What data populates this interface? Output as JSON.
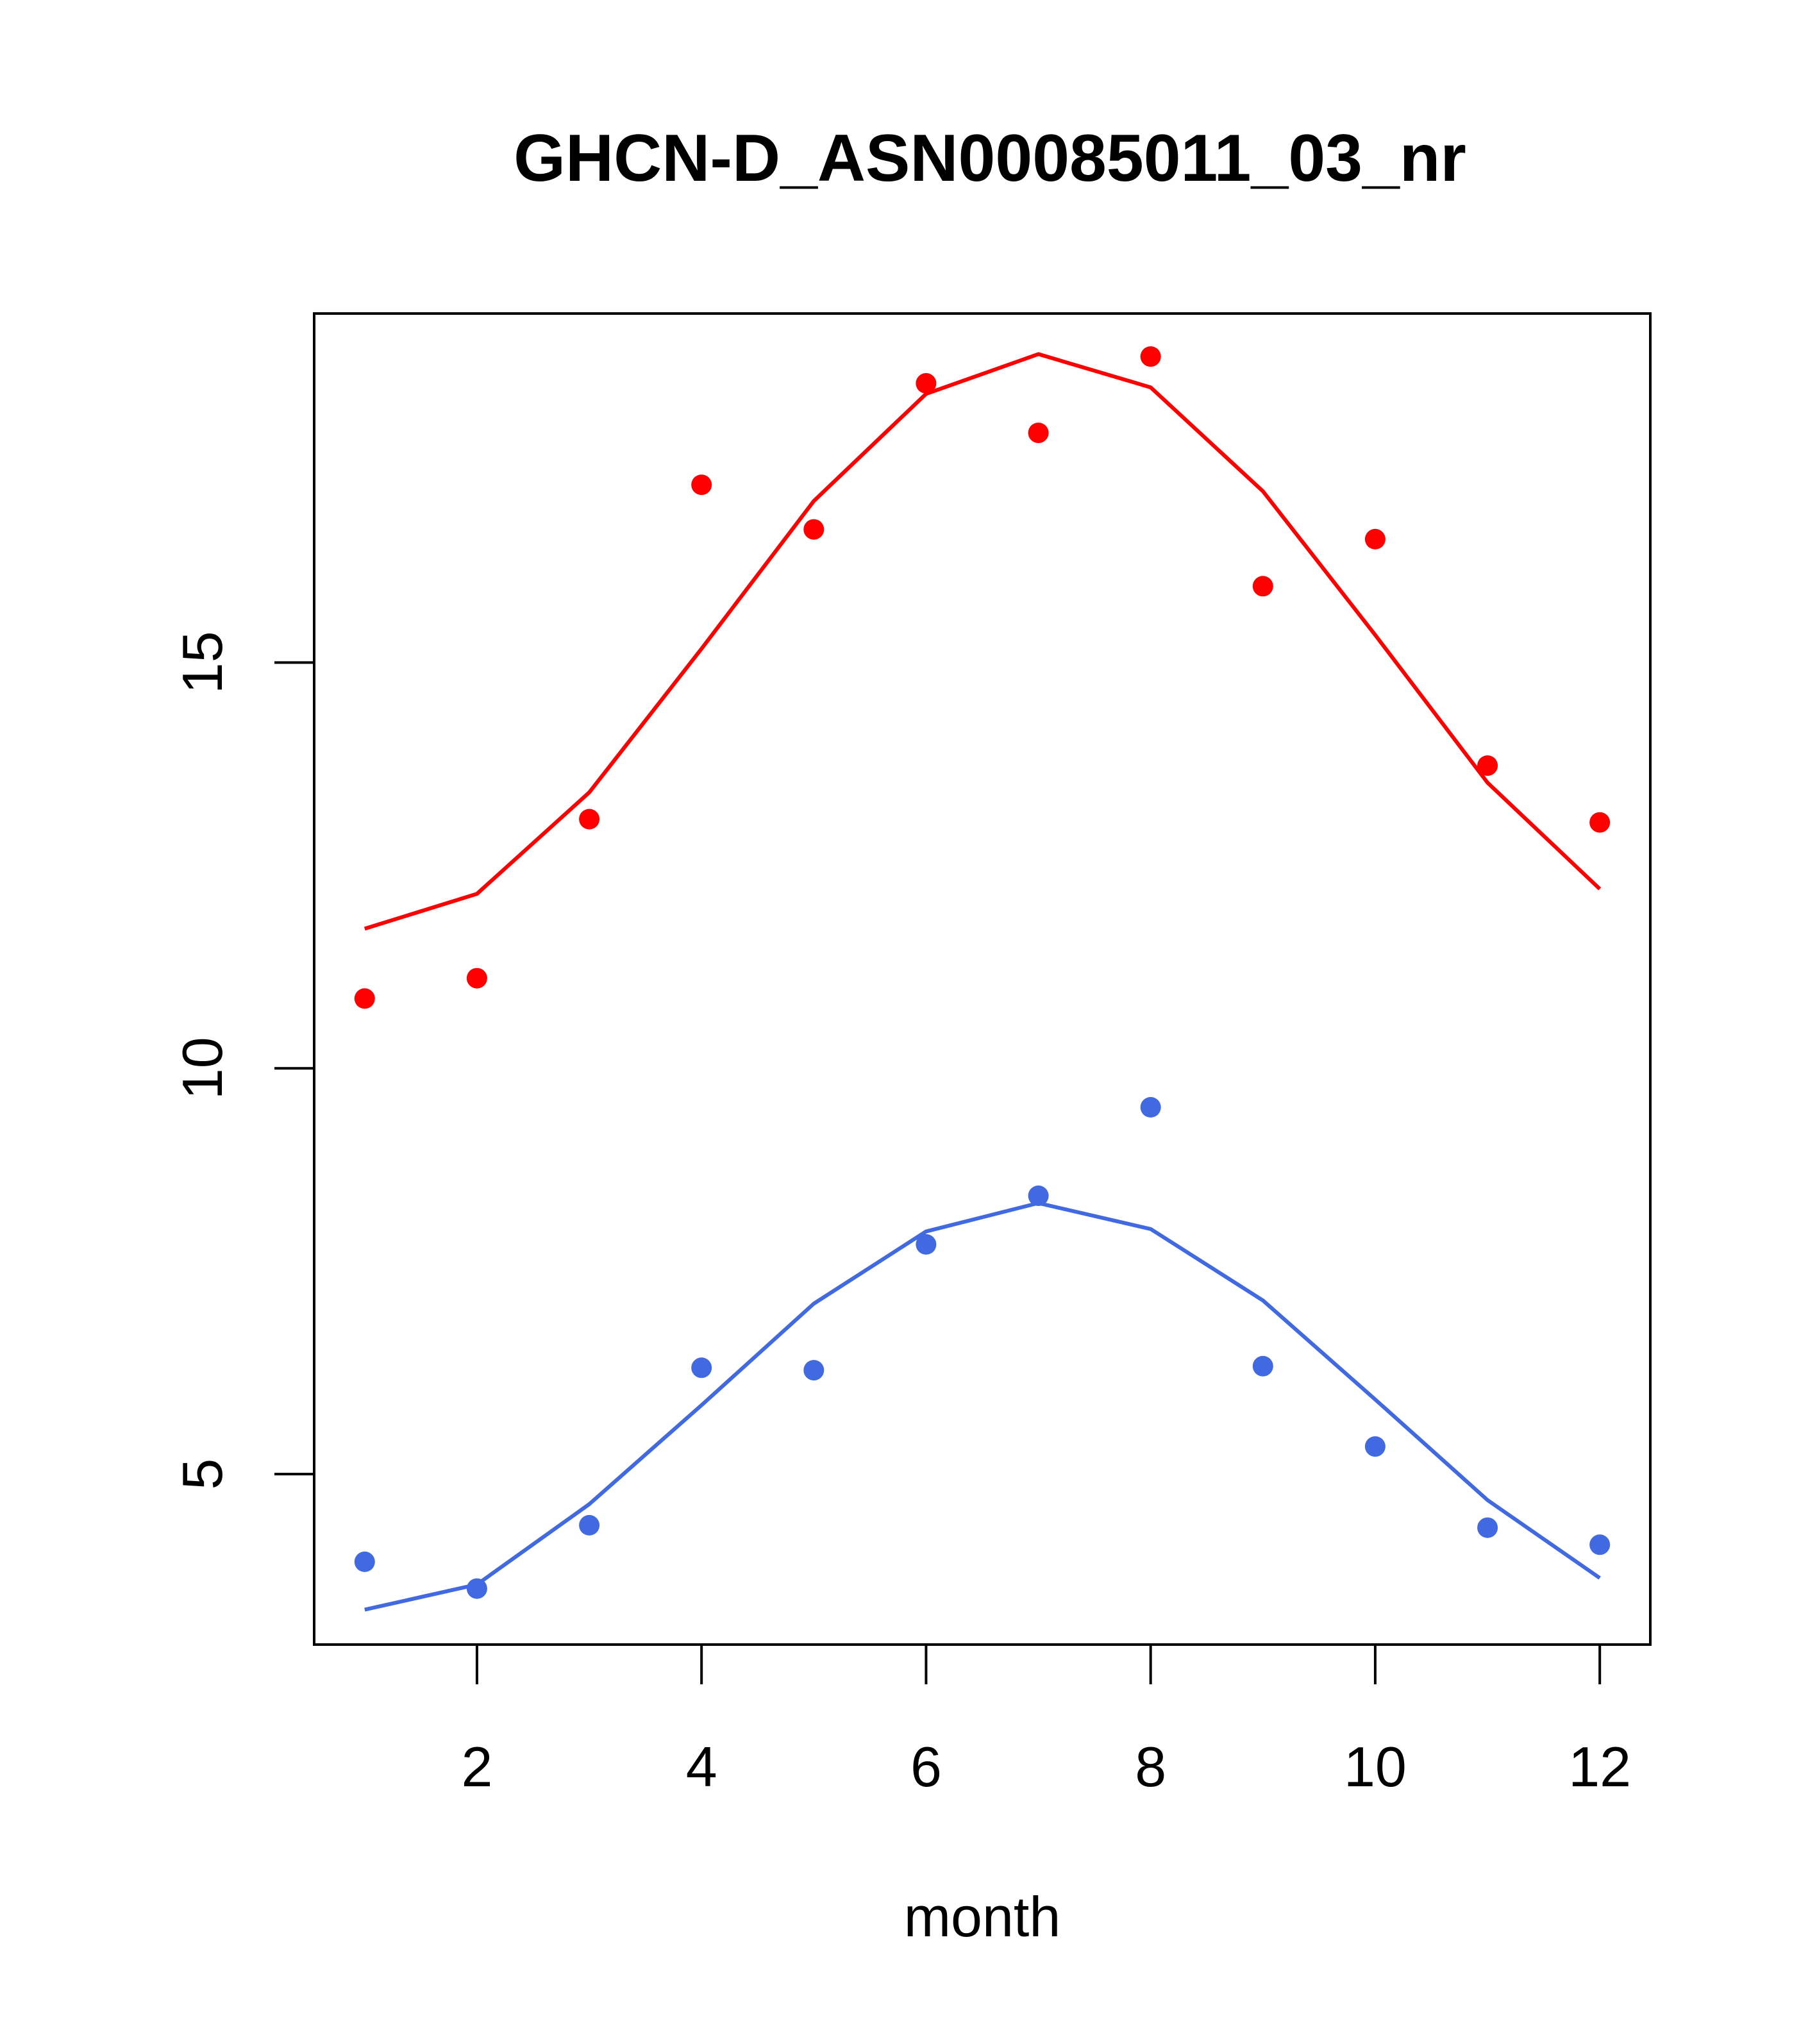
{
  "chart_data": {
    "type": "line",
    "title": "GHCN-D_ASN00085011_03_nr",
    "xlabel": "month",
    "ylabel": "",
    "xlim": [
      0.55,
      12.45
    ],
    "ylim": [
      2.9,
      19.3
    ],
    "x_ticks": [
      2,
      4,
      6,
      8,
      10,
      12
    ],
    "y_ticks": [
      5,
      10,
      15
    ],
    "grid": false,
    "series": [
      {
        "color": "#ff0000",
        "points": [
          10.86,
          11.11,
          13.07,
          17.19,
          16.64,
          18.44,
          17.83,
          18.77,
          15.94,
          16.52,
          13.73,
          13.03
        ],
        "line": [
          11.72,
          12.15,
          13.4,
          15.17,
          16.99,
          18.31,
          18.8,
          18.39,
          17.11,
          15.34,
          13.52,
          12.21
        ]
      },
      {
        "color": "#4169e1",
        "points": [
          3.92,
          3.59,
          4.37,
          6.31,
          6.28,
          7.83,
          8.43,
          9.52,
          6.33,
          5.34,
          4.34,
          4.13
        ],
        "line": [
          3.33,
          3.64,
          4.63,
          5.85,
          7.1,
          7.99,
          8.34,
          8.02,
          7.14,
          5.92,
          4.68,
          3.72
        ]
      }
    ]
  }
}
